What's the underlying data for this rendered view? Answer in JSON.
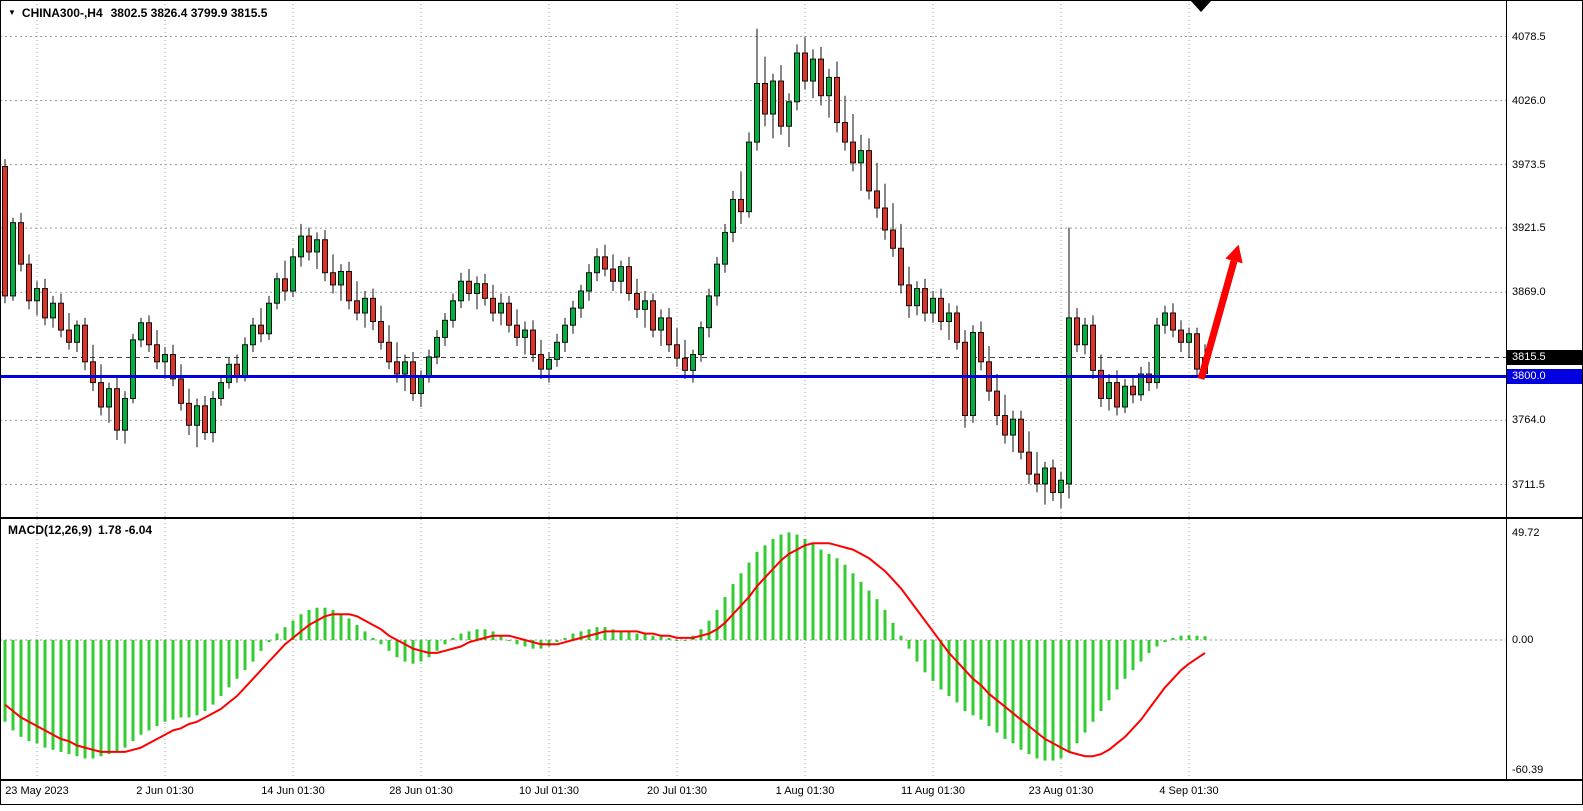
{
  "window": {
    "symbol_timeframe": "CHINA300-,H4",
    "triangle_icon": "▼"
  },
  "chart_data": {
    "type": "candlestick",
    "symbol": "CHINA300-",
    "timeframe": "H4",
    "ohlc_display": "3802.5 3826.4 3799.9 3815.5",
    "current_bar": {
      "open": 3802.5,
      "high": 3826.4,
      "low": 3799.9,
      "close": 3815.5
    },
    "price_panel": {
      "ylim": [
        3685,
        4095
      ],
      "grid_on": true,
      "axis_labels": [
        {
          "text": "4078.5",
          "value": 4078.5
        },
        {
          "text": "4026.0",
          "value": 4026.0
        },
        {
          "text": "3973.5",
          "value": 3973.5
        },
        {
          "text": "3921.5",
          "value": 3921.5
        },
        {
          "text": "3869.0",
          "value": 3869.0
        },
        {
          "text": "3764.0",
          "value": 3764.0
        },
        {
          "text": "3711.5",
          "value": 3711.5
        }
      ],
      "current_price_badge": {
        "text": "3815.5",
        "value": 3815.5
      },
      "hline_badge": {
        "text": "3800.0",
        "value": 3800.0
      },
      "horizontal_line_price": 3800.0,
      "current_price_line": 3815.5,
      "candles": [
        [
          3972,
          3978,
          3860,
          3866
        ],
        [
          3866,
          3930,
          3862,
          3926
        ],
        [
          3926,
          3934,
          3886,
          3892
        ],
        [
          3892,
          3900,
          3855,
          3862
        ],
        [
          3862,
          3878,
          3850,
          3872
        ],
        [
          3872,
          3880,
          3842,
          3848
        ],
        [
          3848,
          3866,
          3840,
          3860
        ],
        [
          3860,
          3868,
          3832,
          3838
        ],
        [
          3838,
          3852,
          3822,
          3828
        ],
        [
          3828,
          3846,
          3820,
          3842
        ],
        [
          3842,
          3848,
          3805,
          3812
        ],
        [
          3812,
          3826,
          3788,
          3795
        ],
        [
          3795,
          3810,
          3768,
          3775
        ],
        [
          3775,
          3795,
          3762,
          3790
        ],
        [
          3790,
          3800,
          3748,
          3756
        ],
        [
          3756,
          3788,
          3745,
          3782
        ],
        [
          3782,
          3835,
          3778,
          3830
        ],
        [
          3830,
          3848,
          3824,
          3844
        ],
        [
          3844,
          3850,
          3820,
          3826
        ],
        [
          3826,
          3838,
          3806,
          3812
        ],
        [
          3812,
          3824,
          3798,
          3818
        ],
        [
          3818,
          3826,
          3792,
          3798
        ],
        [
          3798,
          3810,
          3772,
          3778
        ],
        [
          3778,
          3790,
          3752,
          3760
        ],
        [
          3760,
          3782,
          3742,
          3776
        ],
        [
          3776,
          3784,
          3748,
          3754
        ],
        [
          3754,
          3788,
          3746,
          3782
        ],
        [
          3782,
          3800,
          3776,
          3795
        ],
        [
          3795,
          3815,
          3790,
          3810
        ],
        [
          3810,
          3818,
          3795,
          3800
        ],
        [
          3800,
          3832,
          3796,
          3826
        ],
        [
          3826,
          3848,
          3820,
          3842
        ],
        [
          3842,
          3856,
          3828,
          3835
        ],
        [
          3835,
          3866,
          3830,
          3860
        ],
        [
          3860,
          3885,
          3855,
          3880
        ],
        [
          3880,
          3895,
          3862,
          3870
        ],
        [
          3870,
          3905,
          3865,
          3898
        ],
        [
          3898,
          3925,
          3890,
          3915
        ],
        [
          3915,
          3922,
          3895,
          3902
        ],
        [
          3902,
          3918,
          3888,
          3912
        ],
        [
          3912,
          3920,
          3878,
          3885
        ],
        [
          3885,
          3900,
          3868,
          3875
        ],
        [
          3875,
          3892,
          3862,
          3886
        ],
        [
          3886,
          3894,
          3855,
          3862
        ],
        [
          3862,
          3878,
          3846,
          3852
        ],
        [
          3852,
          3870,
          3840,
          3864
        ],
        [
          3864,
          3872,
          3838,
          3845
        ],
        [
          3845,
          3858,
          3822,
          3828
        ],
        [
          3828,
          3842,
          3806,
          3812
        ],
        [
          3812,
          3828,
          3795,
          3802
        ],
        [
          3802,
          3818,
          3788,
          3812
        ],
        [
          3812,
          3820,
          3780,
          3786
        ],
        [
          3786,
          3805,
          3775,
          3800
        ],
        [
          3800,
          3822,
          3795,
          3816
        ],
        [
          3816,
          3838,
          3810,
          3832
        ],
        [
          3832,
          3852,
          3825,
          3846
        ],
        [
          3846,
          3868,
          3840,
          3862
        ],
        [
          3862,
          3885,
          3856,
          3878
        ],
        [
          3878,
          3888,
          3862,
          3868
        ],
        [
          3868,
          3882,
          3855,
          3876
        ],
        [
          3876,
          3884,
          3858,
          3864
        ],
        [
          3864,
          3875,
          3845,
          3852
        ],
        [
          3852,
          3868,
          3842,
          3860
        ],
        [
          3860,
          3866,
          3836,
          3842
        ],
        [
          3842,
          3855,
          3825,
          3832
        ],
        [
          3832,
          3845,
          3818,
          3838
        ],
        [
          3838,
          3846,
          3812,
          3818
        ],
        [
          3818,
          3830,
          3798,
          3806
        ],
        [
          3806,
          3820,
          3795,
          3814
        ],
        [
          3814,
          3835,
          3808,
          3828
        ],
        [
          3828,
          3848,
          3820,
          3842
        ],
        [
          3842,
          3862,
          3835,
          3856
        ],
        [
          3856,
          3875,
          3848,
          3870
        ],
        [
          3870,
          3892,
          3862,
          3885
        ],
        [
          3885,
          3905,
          3878,
          3898
        ],
        [
          3898,
          3908,
          3882,
          3888
        ],
        [
          3888,
          3900,
          3870,
          3878
        ],
        [
          3878,
          3895,
          3868,
          3890
        ],
        [
          3890,
          3898,
          3862,
          3868
        ],
        [
          3868,
          3880,
          3848,
          3855
        ],
        [
          3855,
          3870,
          3840,
          3862
        ],
        [
          3862,
          3868,
          3832,
          3838
        ],
        [
          3838,
          3855,
          3825,
          3848
        ],
        [
          3848,
          3856,
          3820,
          3826
        ],
        [
          3826,
          3840,
          3808,
          3815
        ],
        [
          3815,
          3830,
          3798,
          3805
        ],
        [
          3805,
          3822,
          3795,
          3818
        ],
        [
          3818,
          3845,
          3812,
          3840
        ],
        [
          3840,
          3872,
          3832,
          3866
        ],
        [
          3866,
          3898,
          3858,
          3892
        ],
        [
          3892,
          3925,
          3885,
          3918
        ],
        [
          3918,
          3952,
          3910,
          3945
        ],
        [
          3945,
          3968,
          3925,
          3935
        ],
        [
          3935,
          4000,
          3930,
          3992
        ],
        [
          3992,
          4085,
          3985,
          4040
        ],
        [
          4040,
          4062,
          4005,
          4015
        ],
        [
          4015,
          4048,
          3995,
          4042
        ],
        [
          4042,
          4055,
          3998,
          4005
        ],
        [
          4005,
          4032,
          3988,
          4025
        ],
        [
          4025,
          4072,
          4018,
          4065
        ],
        [
          4065,
          4078,
          4035,
          4042
        ],
        [
          4042,
          4068,
          4028,
          4060
        ],
        [
          4060,
          4070,
          4022,
          4030
        ],
        [
          4030,
          4052,
          4012,
          4045
        ],
        [
          4045,
          4058,
          4000,
          4008
        ],
        [
          4008,
          4030,
          3985,
          3992
        ],
        [
          3992,
          4015,
          3968,
          3975
        ],
        [
          3975,
          3998,
          3952,
          3985
        ],
        [
          3985,
          3995,
          3945,
          3952
        ],
        [
          3952,
          3975,
          3930,
          3938
        ],
        [
          3938,
          3958,
          3912,
          3920
        ],
        [
          3920,
          3942,
          3898,
          3905
        ],
        [
          3905,
          3925,
          3868,
          3875
        ],
        [
          3875,
          3890,
          3848,
          3858
        ],
        [
          3858,
          3878,
          3850,
          3872
        ],
        [
          3872,
          3880,
          3845,
          3852
        ],
        [
          3852,
          3870,
          3844,
          3864
        ],
        [
          3864,
          3872,
          3838,
          3845
        ],
        [
          3845,
          3860,
          3830,
          3852
        ],
        [
          3852,
          3858,
          3822,
          3828
        ],
        [
          3828,
          3838,
          3758,
          3768
        ],
        [
          3768,
          3842,
          3762,
          3836
        ],
        [
          3836,
          3845,
          3805,
          3812
        ],
        [
          3812,
          3825,
          3780,
          3788
        ],
        [
          3788,
          3802,
          3760,
          3768
        ],
        [
          3768,
          3785,
          3745,
          3752
        ],
        [
          3752,
          3772,
          3738,
          3765
        ],
        [
          3765,
          3772,
          3732,
          3738
        ],
        [
          3738,
          3755,
          3712,
          3720
        ],
        [
          3720,
          3738,
          3705,
          3712
        ],
        [
          3712,
          3730,
          3695,
          3725
        ],
        [
          3725,
          3732,
          3698,
          3705
        ],
        [
          3705,
          3722,
          3692,
          3715
        ],
        [
          3712,
          3922,
          3700,
          3848
        ],
        [
          3848,
          3856,
          3820,
          3826
        ],
        [
          3826,
          3848,
          3818,
          3842
        ],
        [
          3842,
          3850,
          3798,
          3805
        ],
        [
          3805,
          3818,
          3775,
          3782
        ],
        [
          3782,
          3802,
          3772,
          3795
        ],
        [
          3795,
          3805,
          3768,
          3775
        ],
        [
          3775,
          3798,
          3770,
          3792
        ],
        [
          3792,
          3800,
          3778,
          3785
        ],
        [
          3785,
          3808,
          3780,
          3802
        ],
        [
          3802,
          3812,
          3788,
          3795
        ],
        [
          3795,
          3848,
          3790,
          3842
        ],
        [
          3842,
          3858,
          3835,
          3852
        ],
        [
          3852,
          3860,
          3832,
          3838
        ],
        [
          3838,
          3846,
          3820,
          3828
        ],
        [
          3828,
          3840,
          3815,
          3835
        ],
        [
          3835,
          3840,
          3800,
          3806
        ],
        [
          3802.5,
          3826.4,
          3799.9,
          3815.5
        ]
      ]
    },
    "macd_panel": {
      "label": "MACD(12,26,9)",
      "values_display": "1.78 -6.04",
      "macd_value": 1.78,
      "signal_value": -6.04,
      "ylim": [
        -60.39,
        49.72
      ],
      "axis_labels": [
        {
          "text": "49.72",
          "value": 49.72
        },
        {
          "text": "0.00",
          "value": 0.0
        },
        {
          "text": "-60.39",
          "value": -60.39
        }
      ],
      "histogram": [
        -38,
        -42,
        -45,
        -47,
        -48,
        -50,
        -51,
        -52,
        -53,
        -54,
        -55,
        -55,
        -54,
        -53,
        -52,
        -50,
        -47,
        -44,
        -42,
        -40,
        -38,
        -37,
        -36,
        -36,
        -35,
        -33,
        -30,
        -26,
        -22,
        -18,
        -14,
        -10,
        -5,
        -1,
        3,
        6,
        9,
        12,
        14,
        15,
        15,
        14,
        12,
        10,
        7,
        4,
        1,
        -2,
        -5,
        -8,
        -10,
        -11,
        -10,
        -8,
        -5,
        -2,
        1,
        3,
        4,
        5,
        5,
        4,
        2,
        0,
        -2,
        -3,
        -4,
        -4,
        -3,
        -1,
        1,
        3,
        4,
        5,
        6,
        6,
        5,
        4,
        4,
        3,
        3,
        2,
        2,
        1,
        0,
        0,
        2,
        5,
        9,
        14,
        20,
        26,
        31,
        36,
        41,
        44,
        47,
        49,
        50,
        49,
        47,
        45,
        42,
        40,
        38,
        35,
        31,
        27,
        23,
        19,
        14,
        8,
        2,
        -4,
        -10,
        -15,
        -19,
        -23,
        -26,
        -29,
        -33,
        -35,
        -37,
        -40,
        -43,
        -46,
        -48,
        -51,
        -53,
        -55,
        -56,
        -56,
        -55,
        -52,
        -48,
        -43,
        -38,
        -33,
        -28,
        -23,
        -18,
        -14,
        -10,
        -6,
        -3,
        -1,
        1,
        2,
        2.2,
        2,
        1.78
      ],
      "signal": [
        -30,
        -33,
        -36,
        -38,
        -40,
        -42,
        -44,
        -46,
        -47,
        -49,
        -50,
        -51,
        -52,
        -52,
        -52,
        -52,
        -51,
        -50,
        -48,
        -46,
        -44,
        -42,
        -41,
        -39,
        -38,
        -36,
        -34,
        -32,
        -29,
        -26,
        -22,
        -18,
        -14,
        -10,
        -6,
        -2,
        1,
        4,
        7,
        9,
        11,
        12,
        12,
        12,
        11,
        9,
        7,
        5,
        2,
        0,
        -2,
        -4,
        -5,
        -6,
        -6,
        -5,
        -4,
        -3,
        -1,
        0,
        1,
        2,
        2,
        2,
        1,
        0,
        -1,
        -2,
        -2,
        -2,
        -1,
        0,
        1,
        2,
        3,
        4,
        4,
        4,
        4,
        4,
        3,
        3,
        2,
        2,
        1,
        1,
        1,
        2,
        3,
        5,
        8,
        12,
        16,
        20,
        25,
        29,
        33,
        37,
        40,
        42,
        44,
        45,
        45,
        45,
        44,
        43,
        42,
        40,
        38,
        35,
        32,
        28,
        24,
        19,
        14,
        9,
        4,
        -1,
        -6,
        -10,
        -14,
        -18,
        -21,
        -25,
        -28,
        -31,
        -34,
        -37,
        -40,
        -43,
        -46,
        -48,
        -50,
        -52,
        -53,
        -54,
        -54,
        -53,
        -51,
        -48,
        -45,
        -41,
        -37,
        -32,
        -27,
        -22,
        -18,
        -14,
        -11,
        -8.5,
        -6.04
      ]
    },
    "time_axis": {
      "labels": [
        {
          "text": "23 May 2023",
          "index": 4
        },
        {
          "text": "2 Jun 01:30",
          "index": 20
        },
        {
          "text": "14 Jun 01:30",
          "index": 36
        },
        {
          "text": "28 Jun 01:30",
          "index": 52
        },
        {
          "text": "10 Jul 01:30",
          "index": 68
        },
        {
          "text": "20 Jul 01:30",
          "index": 84
        },
        {
          "text": "1 Aug 01:30",
          "index": 100
        },
        {
          "text": "11 Aug 01:30",
          "index": 116
        },
        {
          "text": "23 Aug 01:30",
          "index": 132
        },
        {
          "text": "4 Sep 01:30",
          "index": 148
        }
      ]
    },
    "annotations": {
      "arrow": {
        "from_index": 149.5,
        "from_price": 3798,
        "to_index": 154.2,
        "to_price": 3908
      }
    },
    "colors": {
      "bull": "#00b140",
      "bear": "#dd3228",
      "outline": "#111111",
      "grid": "#9a9a9a",
      "current_price_dash": "#444444",
      "hline_blue": "#0000e0",
      "macd_histogram": "#33cc33",
      "macd_signal": "#ff0000",
      "arrow_red": "#ff0000",
      "badge_current_bg": "#000000",
      "badge_hline_bg": "#0000e0",
      "text": "#000000"
    }
  }
}
